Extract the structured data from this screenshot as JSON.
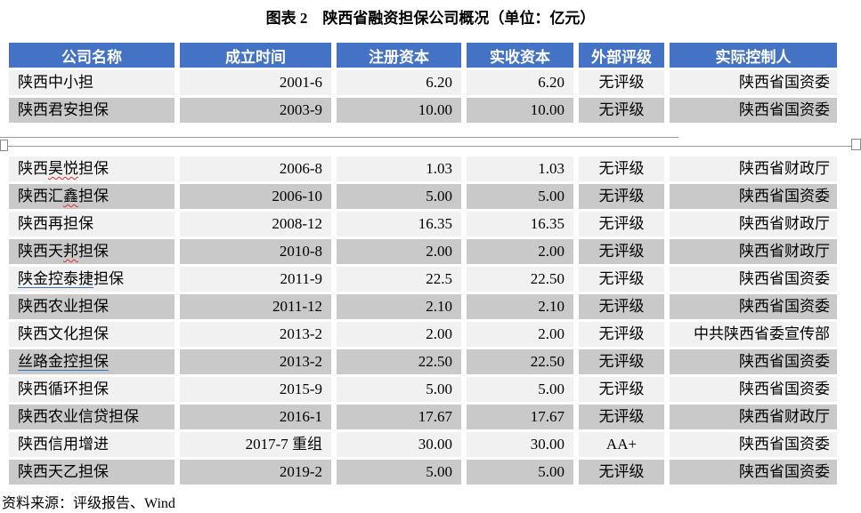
{
  "document": {
    "title": "图表 2　陕西省融资担保公司概况（单位：亿元）",
    "source_note": "资料来源：评级报告、Wind"
  },
  "colors": {
    "header_bg": "#4472c4",
    "header_text": "#ffffff",
    "row_light": "#f1f1f1",
    "row_dark": "#c9c9c9",
    "hyperlink_underline": "#3b74bd",
    "spellcheck_squiggle": "#e03030"
  },
  "table": {
    "headers": [
      "公司名称",
      "成立时间",
      "注册资本",
      "实收资本",
      "外部评级",
      "实际控制人"
    ],
    "page_break_after_row": 2,
    "rows": [
      {
        "name_parts": [
          {
            "text": "陕西中小担",
            "style": "plain"
          }
        ],
        "established": "2001-6",
        "registered_capital": "6.20",
        "paid_in_capital": "6.20",
        "rating": "无评级",
        "controller": "陕西省国资委",
        "shade": "light"
      },
      {
        "name_parts": [
          {
            "text": "陕西君安担保",
            "style": "plain"
          }
        ],
        "established": "2003-9",
        "registered_capital": "10.00",
        "paid_in_capital": "10.00",
        "rating": "无评级",
        "controller": "陕西省国资委",
        "shade": "dark"
      },
      {
        "name_parts": [
          {
            "text": "陕西",
            "style": "plain"
          },
          {
            "text": "昊悦",
            "style": "squiggle"
          },
          {
            "text": "担保",
            "style": "plain"
          }
        ],
        "established": "2006-8",
        "registered_capital": "1.03",
        "paid_in_capital": "1.03",
        "rating": "无评级",
        "controller": "陕西省财政厅",
        "shade": "light"
      },
      {
        "name_parts": [
          {
            "text": "陕西汇",
            "style": "plain"
          },
          {
            "text": "鑫",
            "style": "squiggle"
          },
          {
            "text": "担保",
            "style": "plain"
          }
        ],
        "established": "2006-10",
        "registered_capital": "5.00",
        "paid_in_capital": "5.00",
        "rating": "无评级",
        "controller": "陕西省国资委",
        "shade": "dark"
      },
      {
        "name_parts": [
          {
            "text": "陕西再担保",
            "style": "plain"
          }
        ],
        "established": "2008-12",
        "registered_capital": "16.35",
        "paid_in_capital": "16.35",
        "rating": "无评级",
        "controller": "陕西省财政厅",
        "shade": "light"
      },
      {
        "name_parts": [
          {
            "text": "陕西天",
            "style": "plain"
          },
          {
            "text": "邦",
            "style": "squiggle"
          },
          {
            "text": "担保",
            "style": "plain"
          }
        ],
        "established": "2010-8",
        "registered_capital": "2.00",
        "paid_in_capital": "2.00",
        "rating": "无评级",
        "controller": "陕西省财政厅",
        "shade": "dark"
      },
      {
        "name_parts": [
          {
            "text": "陕金控泰捷",
            "style": "hyperlink"
          },
          {
            "text": "担保",
            "style": "plain"
          }
        ],
        "established": "2011-9",
        "registered_capital": "22.5",
        "paid_in_capital": "22.50",
        "rating": "无评级",
        "controller": "陕西省国资委",
        "shade": "light"
      },
      {
        "name_parts": [
          {
            "text": "陕西农业担保",
            "style": "plain"
          }
        ],
        "established": "2011-12",
        "registered_capital": "2.10",
        "paid_in_capital": "2.10",
        "rating": "无评级",
        "controller": "陕西省国资委",
        "shade": "dark"
      },
      {
        "name_parts": [
          {
            "text": "陕西文化担保",
            "style": "plain"
          }
        ],
        "established": "2013-2",
        "registered_capital": "2.00",
        "paid_in_capital": "2.00",
        "rating": "无评级",
        "controller": "中共陕西省委宣传部",
        "shade": "light"
      },
      {
        "name_parts": [
          {
            "text": "丝路金控担保",
            "style": "hyperlink"
          }
        ],
        "established": "2013-2",
        "registered_capital": "22.50",
        "paid_in_capital": "22.50",
        "rating": "无评级",
        "controller": "陕西省国资委",
        "shade": "dark"
      },
      {
        "name_parts": [
          {
            "text": "陕西循环担保",
            "style": "plain"
          }
        ],
        "established": "2015-9",
        "registered_capital": "5.00",
        "paid_in_capital": "5.00",
        "rating": "无评级",
        "controller": "陕西省国资委",
        "shade": "light"
      },
      {
        "name_parts": [
          {
            "text": "陕西农业信贷担保",
            "style": "plain"
          }
        ],
        "established": "2016-1",
        "registered_capital": "17.67",
        "paid_in_capital": "17.67",
        "rating": "无评级",
        "controller": "陕西省财政厅",
        "shade": "dark"
      },
      {
        "name_parts": [
          {
            "text": "陕西信用增进",
            "style": "plain"
          }
        ],
        "established": "2017-7 重组",
        "registered_capital": "30.00",
        "paid_in_capital": "30.00",
        "rating": "AA+",
        "controller": "陕西省国资委",
        "shade": "light"
      },
      {
        "name_parts": [
          {
            "text": "陕西天乙担保",
            "style": "plain"
          }
        ],
        "established": "2019-2",
        "registered_capital": "5.00",
        "paid_in_capital": "5.00",
        "rating": "无评级",
        "controller": "陕西省国资委",
        "shade": "dark"
      }
    ]
  }
}
